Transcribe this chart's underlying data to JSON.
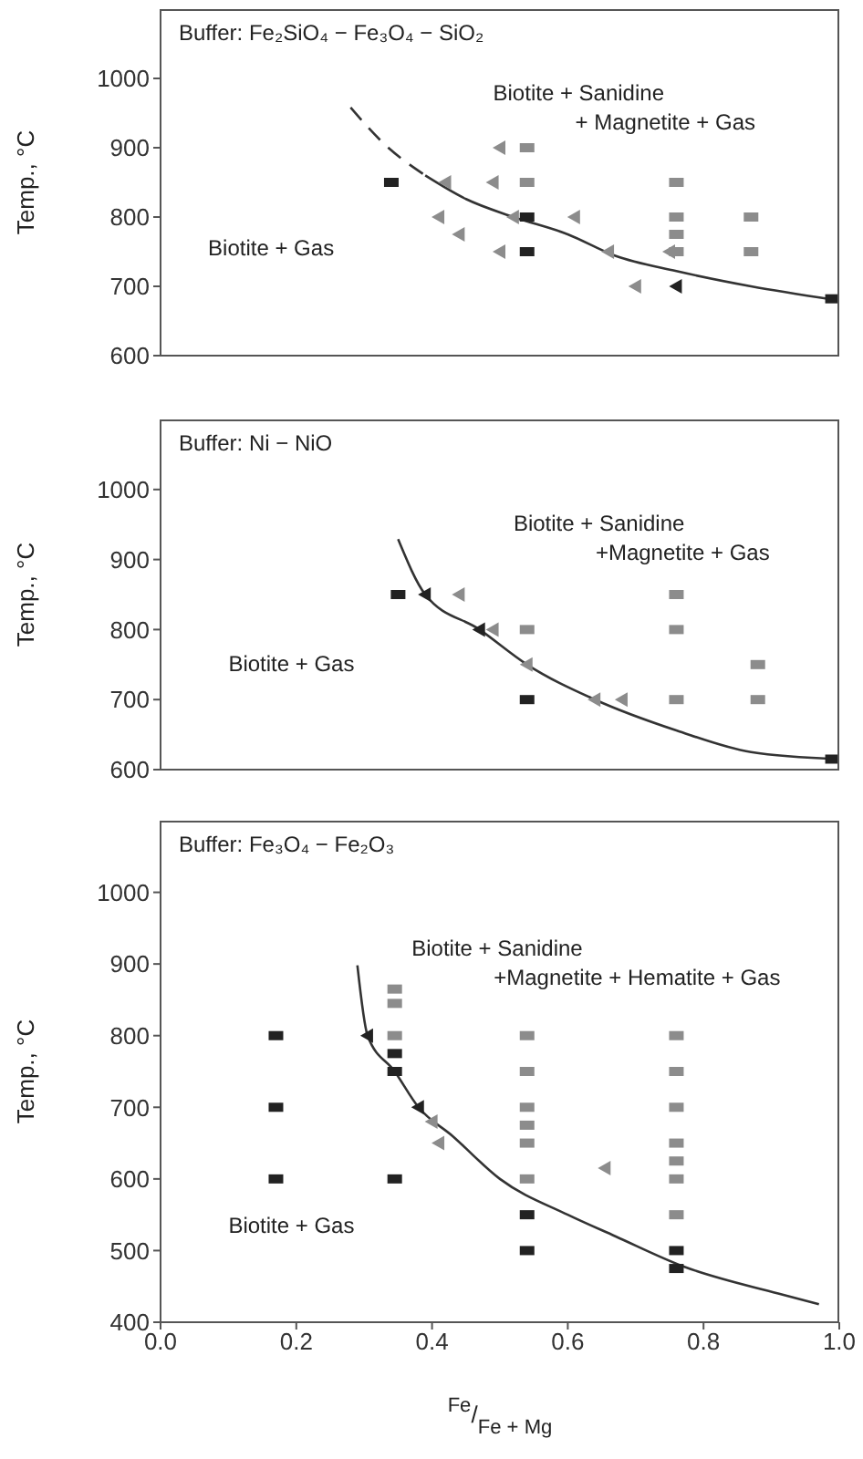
{
  "chart_data": [
    {
      "type": "scatter",
      "title": "Buffer: Fe₂SiO₄ − Fe₃O₄ − SiO₂",
      "ylabel": "Temp., °C",
      "xlim": [
        0,
        1
      ],
      "ylim": [
        600,
        1100
      ],
      "yticks": [
        600,
        700,
        800,
        900,
        1000
      ],
      "tick_labels": "y",
      "annotations": [
        "Biotite + Gas",
        "Biotite + Sanidine\n+ Magnetite + Gas"
      ],
      "series": [
        {
          "color": "#222222",
          "marker": "square",
          "x": [
            0.34,
            0.54,
            0.54,
            0.99
          ],
          "values": [
            850,
            800,
            750,
            682
          ]
        },
        {
          "color": "#8c8c8c",
          "marker": "square",
          "x": [
            0.54,
            0.54,
            0.76,
            0.76,
            0.76,
            0.76,
            0.87,
            0.87
          ],
          "values": [
            900,
            850,
            850,
            800,
            775,
            750,
            800,
            750
          ]
        },
        {
          "color": "#8c8c8c",
          "marker": "triangle",
          "x": [
            0.5,
            0.49,
            0.42,
            0.52,
            0.61,
            0.66,
            0.75,
            0.41,
            0.44,
            0.5,
            0.7
          ],
          "values": [
            900,
            850,
            850,
            800,
            800,
            750,
            750,
            800,
            775,
            750,
            700
          ]
        },
        {
          "color": "#222222",
          "marker": "triangle",
          "x": [
            0.76
          ],
          "values": [
            700
          ]
        },
        {
          "type": "line",
          "color": "#333333",
          "line_style": "dashed",
          "x": [
            0.28,
            0.33,
            0.39
          ],
          "values": [
            958,
            905,
            860
          ]
        },
        {
          "type": "line",
          "color": "#333333",
          "line_style": "solid",
          "x": [
            0.39,
            0.45,
            0.52,
            0.6,
            0.67,
            0.76,
            0.87,
            0.99
          ],
          "values": [
            860,
            826,
            800,
            775,
            744,
            722,
            700,
            681
          ]
        }
      ]
    },
    {
      "type": "scatter",
      "title": "Buffer: Ni − NiO",
      "ylabel": "Temp., °C",
      "xlim": [
        0,
        1
      ],
      "ylim": [
        600,
        1100
      ],
      "yticks": [
        600,
        700,
        800,
        900,
        1000
      ],
      "tick_labels": "y",
      "annotations": [
        "Biotite + Gas",
        "Biotite + Sanidine\n+Magnetite + Gas"
      ],
      "series": [
        {
          "color": "#222222",
          "marker": "square",
          "x": [
            0.35,
            0.54,
            0.99
          ],
          "values": [
            850,
            700,
            615
          ]
        },
        {
          "color": "#222222",
          "marker": "triangle",
          "x": [
            0.39,
            0.47
          ],
          "values": [
            850,
            800
          ]
        },
        {
          "color": "#8c8c8c",
          "marker": "square",
          "x": [
            0.54,
            0.76,
            0.76,
            0.88,
            0.76,
            0.88
          ],
          "values": [
            800,
            850,
            800,
            750,
            700,
            700
          ]
        },
        {
          "color": "#8c8c8c",
          "marker": "triangle",
          "x": [
            0.44,
            0.49,
            0.54,
            0.64,
            0.68
          ],
          "values": [
            850,
            800,
            750,
            700,
            700
          ]
        },
        {
          "type": "line",
          "color": "#333333",
          "line_style": "solid",
          "x": [
            0.35,
            0.39,
            0.47,
            0.54,
            0.64,
            0.76,
            0.87,
            1.0
          ],
          "values": [
            929,
            850,
            800,
            750,
            700,
            656,
            625,
            615
          ]
        }
      ]
    },
    {
      "type": "scatter",
      "title": "Buffer: Fe₃O₄ − Fe₂O₃",
      "ylabel": "Temp., °C",
      "xlabel": "$^{Fe}$/$_{Fe + Mg}$",
      "xlim": [
        0,
        1
      ],
      "ylim": [
        400,
        1100
      ],
      "xticks": [
        {
          "value": 0,
          "label": "0.0"
        },
        {
          "value": 0.2,
          "label": "0.2"
        },
        {
          "value": 0.4,
          "label": "0.4"
        },
        {
          "value": 0.6,
          "label": "0.6"
        },
        {
          "value": 0.8,
          "label": "0.8"
        },
        {
          "value": 1,
          "label": "1.0"
        }
      ],
      "yticks": [
        400,
        500,
        600,
        700,
        800,
        900,
        1000
      ],
      "annotations": [
        "Biotite + Gas",
        "Biotite + Sanidine\n+Magnetite + Hematite + Gas"
      ],
      "series": [
        {
          "color": "#222222",
          "marker": "square",
          "x": [
            0.17,
            0.17,
            0.17,
            0.345,
            0.345,
            0.345,
            0.54,
            0.54,
            0.76,
            0.76
          ],
          "values": [
            800,
            700,
            600,
            775,
            750,
            600,
            550,
            500,
            500,
            475
          ]
        },
        {
          "color": "#222222",
          "marker": "triangle",
          "x": [
            0.305,
            0.38
          ],
          "values": [
            800,
            700
          ]
        },
        {
          "color": "#8c8c8c",
          "marker": "square",
          "x": [
            0.345,
            0.345,
            0.345,
            0.54,
            0.54,
            0.54,
            0.54,
            0.54,
            0.54,
            0.76,
            0.76,
            0.76,
            0.76,
            0.76,
            0.76,
            0.76
          ],
          "values": [
            865,
            845,
            800,
            800,
            750,
            700,
            675,
            650,
            600,
            800,
            750,
            700,
            650,
            625,
            600,
            550
          ]
        },
        {
          "color": "#8c8c8c",
          "marker": "triangle",
          "x": [
            0.4,
            0.41,
            0.655
          ],
          "values": [
            680,
            650,
            615
          ]
        },
        {
          "type": "line",
          "color": "#333333",
          "line_style": "solid",
          "x": [
            0.29,
            0.305,
            0.345,
            0.38,
            0.43,
            0.5,
            0.6,
            0.67,
            0.77,
            0.91,
            0.97
          ],
          "values": [
            898,
            800,
            750,
            700,
            660,
            600,
            550,
            520,
            478,
            440,
            425
          ]
        }
      ]
    }
  ]
}
